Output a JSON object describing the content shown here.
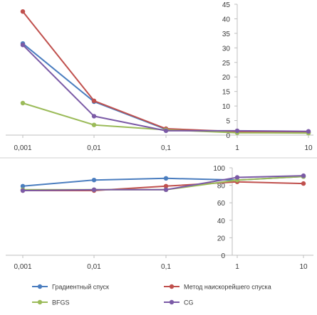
{
  "chart_data": [
    {
      "type": "line",
      "x": [
        "0,001",
        "0,01",
        "0,1",
        "1",
        "10"
      ],
      "y_axis_side": "right",
      "ylim": [
        0,
        45
      ],
      "yticks": [
        0,
        5,
        10,
        15,
        20,
        25,
        30,
        35,
        40,
        45
      ],
      "xlabel": "",
      "ylabel": "",
      "grid": false,
      "series": [
        {
          "name": "Градиентный спуск",
          "color": "#4a7dbf",
          "values": [
            31.5,
            11.5,
            2.0,
            1.0,
            0.8
          ]
        },
        {
          "name": "Метод наискорейшего спуска",
          "color": "#c0504d",
          "values": [
            42.5,
            11.8,
            2.2,
            1.2,
            1.0
          ]
        },
        {
          "name": "BFGS",
          "color": "#9bbb59",
          "values": [
            11.0,
            3.5,
            1.8,
            0.8,
            0.7
          ]
        },
        {
          "name": "CG",
          "color": "#7b5aa6",
          "values": [
            31.0,
            6.5,
            1.5,
            1.5,
            1.3
          ]
        }
      ]
    },
    {
      "type": "line",
      "x": [
        "0,001",
        "0,01",
        "0,1",
        "1",
        "10"
      ],
      "y_axis_side": "right",
      "ylim": [
        0,
        100
      ],
      "yticks": [
        0,
        20,
        40,
        60,
        80,
        100
      ],
      "xlabel": "",
      "ylabel": "",
      "grid": false,
      "legend": "bottom",
      "series": [
        {
          "name": "Градиентный спуск",
          "color": "#4a7dbf",
          "values": [
            79,
            86,
            88,
            86,
            90
          ]
        },
        {
          "name": "Метод наискорейшего спуска",
          "color": "#c0504d",
          "values": [
            74,
            74,
            79,
            84,
            82
          ]
        },
        {
          "name": "BFGS",
          "color": "#9bbb59",
          "values": [
            75,
            75,
            75,
            86,
            90
          ]
        },
        {
          "name": "CG",
          "color": "#7b5aa6",
          "values": [
            74,
            75,
            75,
            89,
            91
          ]
        }
      ]
    }
  ],
  "legend": {
    "items": [
      {
        "label": "Градиентный спуск",
        "color": "#4a7dbf"
      },
      {
        "label": "Метод наискорейшего спуска",
        "color": "#c0504d"
      },
      {
        "label": "BFGS",
        "color": "#9bbb59"
      },
      {
        "label": "CG",
        "color": "#7b5aa6"
      }
    ]
  }
}
